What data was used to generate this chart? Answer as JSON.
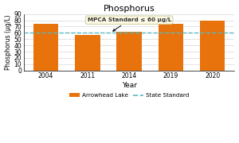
{
  "title": "Phosphorus",
  "xlabel": "Year",
  "ylabel": "Phosphorus (μg/L)",
  "years": [
    "2004",
    "2011",
    "2014",
    "2019",
    "2020"
  ],
  "values": [
    75,
    57,
    62,
    75,
    80
  ],
  "bar_color": "#E8720C",
  "standard_value": 60,
  "standard_color": "#5BB8C1",
  "ylim": [
    0,
    90
  ],
  "yticks": [
    0,
    10,
    20,
    30,
    40,
    50,
    60,
    70,
    80,
    90
  ],
  "annotation_text": "MPCA Standard ≤ 60 μg/L",
  "annotation_box_color": "#FFFBE6",
  "annotation_box_edge": "#CCCC99",
  "legend_lake": "Arrowhead Lake",
  "legend_standard": "State Standard",
  "background_color": "#FFFFFF",
  "plot_bg_color": "#FFFFFF",
  "grid_color": "#D8D8D8"
}
